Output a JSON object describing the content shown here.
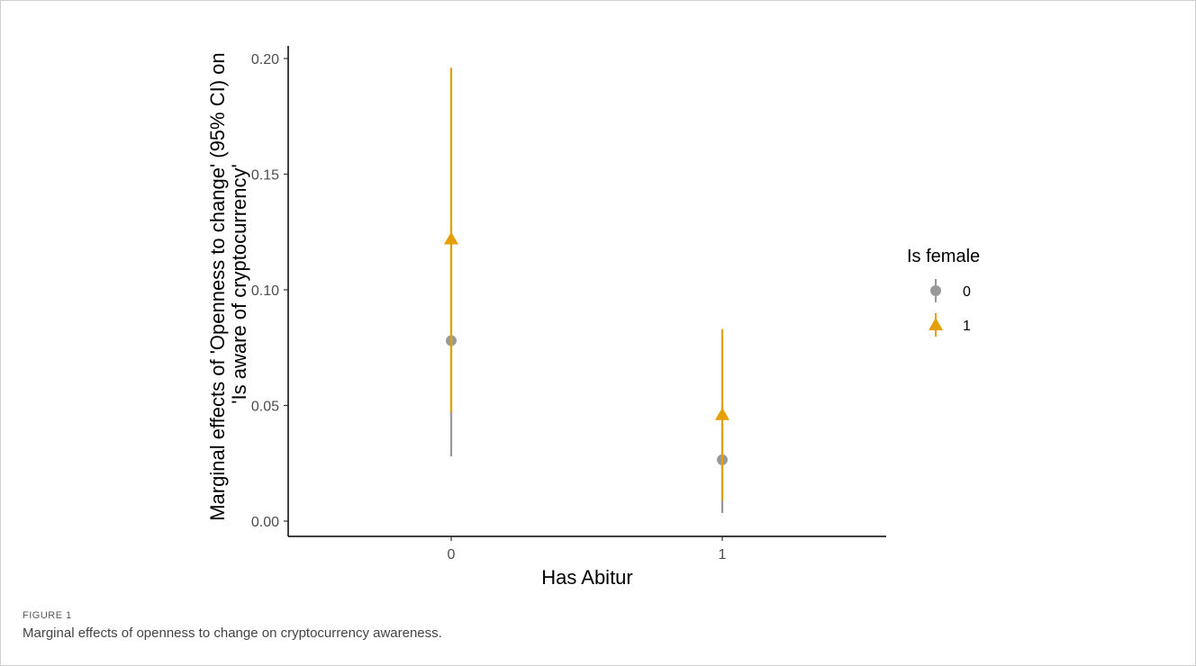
{
  "caption": {
    "label": "FIGURE 1",
    "text": "Marginal effects of openness to change on cryptocurrency awareness."
  },
  "chart_data": {
    "type": "scatter",
    "subtype": "point-range",
    "xlabel": "Has Abitur",
    "ylabel_line1": "Marginal effects of 'Openness to change' (95% CI) on",
    "ylabel_line2": "'Is aware of cryptocurrency'",
    "categories": [
      "0",
      "1"
    ],
    "ylim": [
      0,
      0.205
    ],
    "yticks": [
      "0.00",
      "0.05",
      "0.10",
      "0.15",
      "0.20"
    ],
    "ytick_values": [
      0,
      0.05,
      0.1,
      0.15,
      0.2
    ],
    "grid": false,
    "legend": {
      "title": "Is female",
      "placement": "right",
      "entries": [
        "0",
        "1"
      ]
    },
    "series": [
      {
        "name": "0",
        "color": "#999999",
        "marker": "circle",
        "points": [
          {
            "x": "0",
            "y": 0.078,
            "lower": 0.028,
            "upper": 0.128
          },
          {
            "x": "1",
            "y": 0.0265,
            "lower": 0.0035,
            "upper": 0.05
          }
        ]
      },
      {
        "name": "1",
        "color": "#E69F00",
        "marker": "triangle",
        "points": [
          {
            "x": "0",
            "y": 0.122,
            "lower": 0.047,
            "upper": 0.196
          },
          {
            "x": "1",
            "y": 0.046,
            "lower": 0.009,
            "upper": 0.083
          }
        ]
      }
    ]
  }
}
